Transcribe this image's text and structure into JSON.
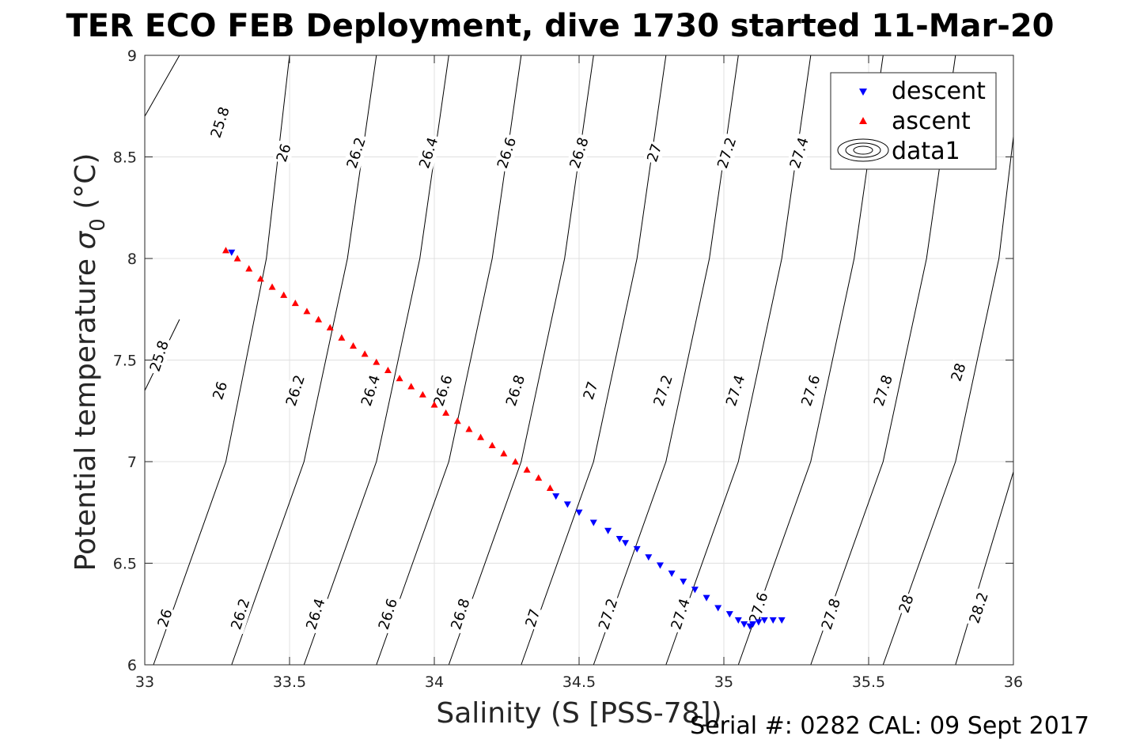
{
  "chart_data": {
    "type": "scatter",
    "title": "TER ECO FEB Deployment, dive 1730 started 11-Mar-20",
    "xlabel": "Salinity (S [PSS-78])",
    "ylabel_main": "Potential temperature ",
    "ylabel_sigma": "σ",
    "ylabel_sub": "0",
    "ylabel_unit": " (°C)",
    "footer": "Serial #: 0282  CAL: 09 Sept 2017",
    "xlim": [
      33,
      36
    ],
    "ylim": [
      6,
      9
    ],
    "xticks": [
      33,
      33.5,
      34,
      34.5,
      35,
      35.5,
      36
    ],
    "yticks": [
      6,
      6.5,
      7,
      7.5,
      8,
      8.5,
      9
    ],
    "xtick_labels": [
      "33",
      "33.5",
      "34",
      "34.5",
      "35",
      "35.5",
      "36"
    ],
    "ytick_labels": [
      "6",
      "6.5",
      "7",
      "7.5",
      "8",
      "8.5",
      "9"
    ],
    "grid": true,
    "legend_position": "top-right",
    "series": [
      {
        "name": "descent",
        "marker": "triangle-down",
        "color": "#0000ff",
        "points": [
          [
            33.3,
            8.03
          ],
          [
            34.42,
            6.83
          ],
          [
            34.46,
            6.79
          ],
          [
            34.5,
            6.75
          ],
          [
            34.55,
            6.7
          ],
          [
            34.6,
            6.66
          ],
          [
            34.64,
            6.62
          ],
          [
            34.66,
            6.6
          ],
          [
            34.7,
            6.57
          ],
          [
            34.74,
            6.53
          ],
          [
            34.78,
            6.49
          ],
          [
            34.82,
            6.45
          ],
          [
            34.86,
            6.41
          ],
          [
            34.9,
            6.37
          ],
          [
            34.94,
            6.33
          ],
          [
            34.98,
            6.28
          ],
          [
            35.02,
            6.25
          ],
          [
            35.05,
            6.22
          ],
          [
            35.07,
            6.2
          ],
          [
            35.09,
            6.19
          ],
          [
            35.1,
            6.2
          ],
          [
            35.12,
            6.21
          ],
          [
            35.14,
            6.22
          ],
          [
            35.17,
            6.22
          ],
          [
            35.2,
            6.22
          ]
        ]
      },
      {
        "name": "ascent",
        "marker": "triangle-up",
        "color": "#ff0000",
        "points": [
          [
            33.28,
            8.04
          ],
          [
            33.32,
            8.0
          ],
          [
            33.36,
            7.95
          ],
          [
            33.4,
            7.9
          ],
          [
            33.44,
            7.86
          ],
          [
            33.48,
            7.82
          ],
          [
            33.52,
            7.78
          ],
          [
            33.56,
            7.74
          ],
          [
            33.6,
            7.7
          ],
          [
            33.64,
            7.66
          ],
          [
            33.68,
            7.61
          ],
          [
            33.72,
            7.57
          ],
          [
            33.76,
            7.53
          ],
          [
            33.8,
            7.49
          ],
          [
            33.84,
            7.45
          ],
          [
            33.88,
            7.41
          ],
          [
            33.92,
            7.37
          ],
          [
            33.96,
            7.33
          ],
          [
            34.0,
            7.28
          ],
          [
            34.04,
            7.24
          ],
          [
            34.08,
            7.2
          ],
          [
            34.12,
            7.16
          ],
          [
            34.16,
            7.12
          ],
          [
            34.2,
            7.08
          ],
          [
            34.24,
            7.04
          ],
          [
            34.28,
            7.0
          ],
          [
            34.32,
            6.96
          ],
          [
            34.36,
            6.92
          ],
          [
            34.4,
            6.87
          ]
        ]
      }
    ],
    "contour_series_name": "data1",
    "contours": [
      {
        "sigma": "25.8",
        "lines": [
          [
            [
              33.0,
              8.7
            ],
            [
              33.12,
              9.0
            ]
          ],
          [
            [
              33.0,
              7.35
            ],
            [
              33.12,
              7.7
            ]
          ]
        ]
      },
      {
        "sigma": "26",
        "lines": [
          [
            [
              33.03,
              6.0
            ],
            [
              33.28,
              7.0
            ],
            [
              33.42,
              8.0
            ],
            [
              33.5,
              9.0
            ]
          ]
        ]
      },
      {
        "sigma": "26.2",
        "lines": [
          [
            [
              33.3,
              6.0
            ],
            [
              33.55,
              7.0
            ],
            [
              33.7,
              8.0
            ],
            [
              33.8,
              9.0
            ]
          ]
        ]
      },
      {
        "sigma": "26.4",
        "lines": [
          [
            [
              33.55,
              6.0
            ],
            [
              33.8,
              7.0
            ],
            [
              33.95,
              8.0
            ],
            [
              34.05,
              9.0
            ]
          ]
        ]
      },
      {
        "sigma": "26.6",
        "lines": [
          [
            [
              33.8,
              6.0
            ],
            [
              34.05,
              7.0
            ],
            [
              34.2,
              8.0
            ],
            [
              34.3,
              9.0
            ]
          ]
        ]
      },
      {
        "sigma": "26.8",
        "lines": [
          [
            [
              34.05,
              6.0
            ],
            [
              34.3,
              7.0
            ],
            [
              34.45,
              8.0
            ],
            [
              34.55,
              9.0
            ]
          ]
        ]
      },
      {
        "sigma": "27",
        "lines": [
          [
            [
              34.3,
              6.0
            ],
            [
              34.55,
              7.0
            ],
            [
              34.7,
              8.0
            ],
            [
              34.8,
              9.0
            ]
          ]
        ]
      },
      {
        "sigma": "27.2",
        "lines": [
          [
            [
              34.55,
              6.0
            ],
            [
              34.8,
              7.0
            ],
            [
              34.95,
              8.0
            ],
            [
              35.05,
              9.0
            ]
          ]
        ]
      },
      {
        "sigma": "27.4",
        "lines": [
          [
            [
              34.8,
              6.0
            ],
            [
              35.05,
              7.0
            ],
            [
              35.2,
              8.0
            ],
            [
              35.3,
              9.0
            ]
          ]
        ]
      },
      {
        "sigma": "27.6",
        "lines": [
          [
            [
              35.05,
              6.0
            ],
            [
              35.3,
              7.0
            ],
            [
              35.45,
              8.0
            ],
            [
              35.55,
              9.0
            ]
          ]
        ]
      },
      {
        "sigma": "27.8",
        "lines": [
          [
            [
              35.3,
              6.0
            ],
            [
              35.55,
              7.0
            ],
            [
              35.7,
              8.0
            ],
            [
              35.8,
              9.0
            ]
          ]
        ]
      },
      {
        "sigma": "28",
        "lines": [
          [
            [
              35.55,
              6.0
            ],
            [
              35.8,
              7.0
            ],
            [
              35.95,
              8.0
            ],
            [
              36.0,
              8.6
            ]
          ]
        ]
      },
      {
        "sigma": "28.2",
        "lines": [
          [
            [
              35.8,
              6.0
            ],
            [
              36.0,
              6.95
            ]
          ]
        ]
      }
    ],
    "contour_labels": [
      {
        "text": "25.8",
        "x": 33.26,
        "y": 8.67,
        "angle": -72
      },
      {
        "text": "26",
        "x": 33.48,
        "y": 8.52,
        "angle": -72
      },
      {
        "text": "26.2",
        "x": 33.73,
        "y": 8.52,
        "angle": -72
      },
      {
        "text": "26.4",
        "x": 33.98,
        "y": 8.52,
        "angle": -72
      },
      {
        "text": "26.6",
        "x": 34.25,
        "y": 8.52,
        "angle": -72
      },
      {
        "text": "26.8",
        "x": 34.5,
        "y": 8.52,
        "angle": -72
      },
      {
        "text": "27",
        "x": 34.76,
        "y": 8.52,
        "angle": -72
      },
      {
        "text": "27.2",
        "x": 35.01,
        "y": 8.52,
        "angle": -72
      },
      {
        "text": "27.4",
        "x": 35.26,
        "y": 8.52,
        "angle": -72
      },
      {
        "text": "25.8",
        "x": 33.05,
        "y": 7.52,
        "angle": -72
      },
      {
        "text": "26",
        "x": 33.26,
        "y": 7.35,
        "angle": -72
      },
      {
        "text": "26.2",
        "x": 33.52,
        "y": 7.35,
        "angle": -72
      },
      {
        "text": "26.4",
        "x": 33.78,
        "y": 7.35,
        "angle": -72
      },
      {
        "text": "26.6",
        "x": 34.03,
        "y": 7.35,
        "angle": -72
      },
      {
        "text": "26.8",
        "x": 34.28,
        "y": 7.35,
        "angle": -72
      },
      {
        "text": "27",
        "x": 34.54,
        "y": 7.35,
        "angle": -72
      },
      {
        "text": "27.2",
        "x": 34.79,
        "y": 7.35,
        "angle": -72
      },
      {
        "text": "27.4",
        "x": 35.04,
        "y": 7.35,
        "angle": -72
      },
      {
        "text": "27.6",
        "x": 35.3,
        "y": 7.35,
        "angle": -72
      },
      {
        "text": "27.8",
        "x": 35.55,
        "y": 7.35,
        "angle": -72
      },
      {
        "text": "28",
        "x": 35.81,
        "y": 7.44,
        "angle": -72
      },
      {
        "text": "26",
        "x": 33.07,
        "y": 6.23,
        "angle": -72
      },
      {
        "text": "26.2",
        "x": 33.33,
        "y": 6.25,
        "angle": -72
      },
      {
        "text": "26.4",
        "x": 33.59,
        "y": 6.25,
        "angle": -72
      },
      {
        "text": "26.6",
        "x": 33.84,
        "y": 6.25,
        "angle": -72
      },
      {
        "text": "26.8",
        "x": 34.09,
        "y": 6.25,
        "angle": -72
      },
      {
        "text": "27",
        "x": 34.34,
        "y": 6.23,
        "angle": -72
      },
      {
        "text": "27.2",
        "x": 34.6,
        "y": 6.25,
        "angle": -72
      },
      {
        "text": "27.4",
        "x": 34.85,
        "y": 6.25,
        "angle": -72
      },
      {
        "text": "27.6",
        "x": 35.12,
        "y": 6.28,
        "angle": -72
      },
      {
        "text": "27.8",
        "x": 35.37,
        "y": 6.25,
        "angle": -72
      },
      {
        "text": "28",
        "x": 35.63,
        "y": 6.3,
        "angle": -72
      },
      {
        "text": "28.2",
        "x": 35.88,
        "y": 6.28,
        "angle": -72
      }
    ]
  }
}
